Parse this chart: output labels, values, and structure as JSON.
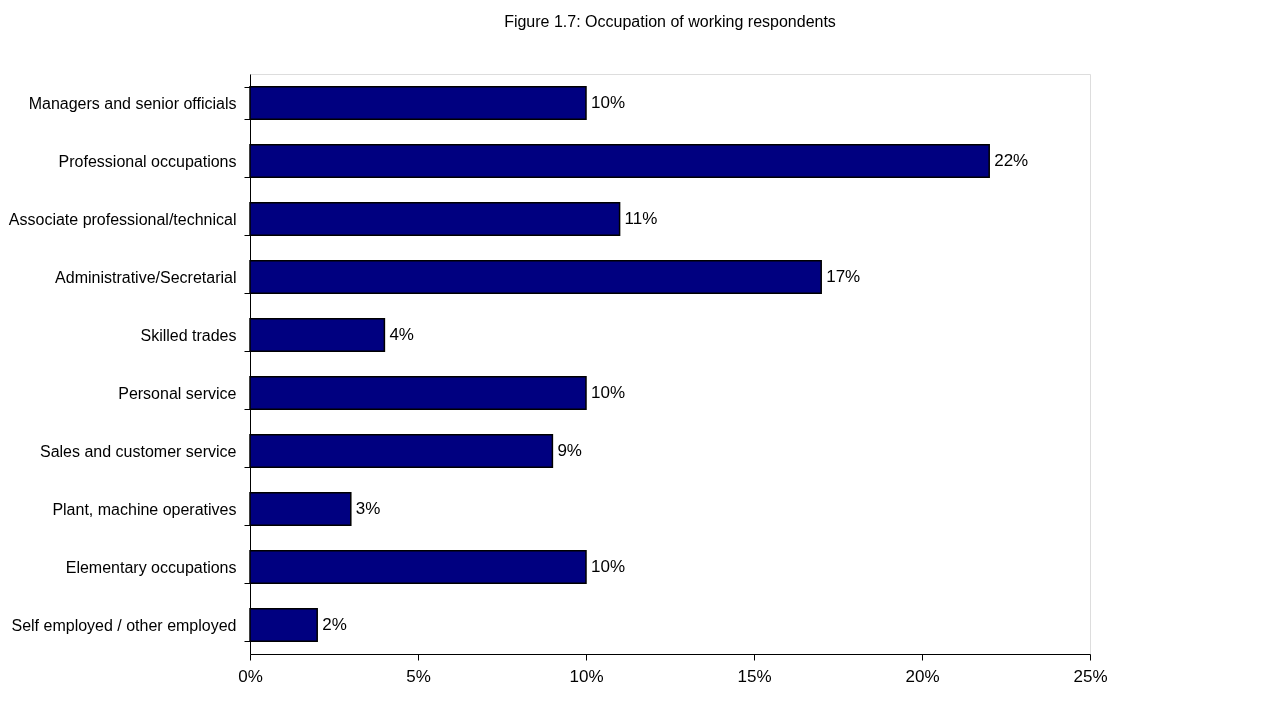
{
  "chart_data": {
    "type": "bar",
    "orientation": "horizontal",
    "title": "Figure 1.7: Occupation of working respondents",
    "categories": [
      "Managers and senior officials",
      "Professional occupations",
      "Associate professional/technical",
      "Administrative/Secretarial",
      "Skilled trades",
      "Personal service",
      "Sales and customer service",
      "Plant, machine operatives",
      "Elementary occupations",
      "Self employed / other employed"
    ],
    "values": [
      10,
      22,
      11,
      17,
      4,
      10,
      9,
      3,
      10,
      2
    ],
    "value_labels": [
      "10%",
      "22%",
      "11%",
      "17%",
      "4%",
      "10%",
      "9%",
      "3%",
      "10%",
      "2%"
    ],
    "color": "#000080",
    "xlim": [
      0,
      25
    ],
    "xticks": [
      {
        "value": 0,
        "label": "0%"
      },
      {
        "value": 5,
        "label": "5%"
      },
      {
        "value": 10,
        "label": "10%"
      },
      {
        "value": 15,
        "label": "15%"
      },
      {
        "value": 20,
        "label": "20%"
      },
      {
        "value": 25,
        "label": "25%"
      }
    ],
    "grid": false
  }
}
